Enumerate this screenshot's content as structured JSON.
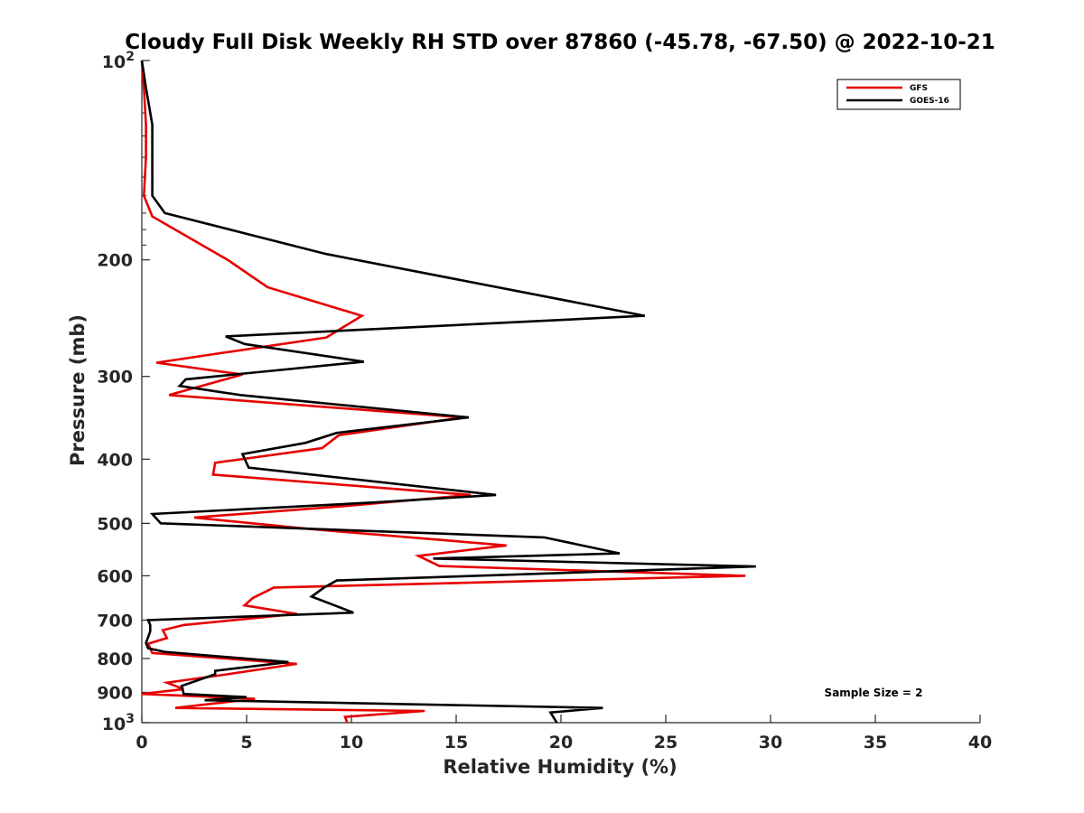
{
  "chart_data": {
    "type": "line",
    "title": "Cloudy Full Disk Weekly RH STD over 87860 (-45.78, -67.50) @ 2022-10-21",
    "xlabel": "Relative Humidity (%)",
    "ylabel": "Pressure (mb)",
    "xlim": [
      0,
      40
    ],
    "ylim": [
      100,
      1000
    ],
    "y_scale": "log",
    "y_reversed": true,
    "x_ticks": [
      "0",
      "5",
      "10",
      "15",
      "20",
      "25",
      "30",
      "35",
      "40"
    ],
    "y_ticks": [
      {
        "value": 200,
        "label": "200"
      },
      {
        "value": 300,
        "label": "300"
      },
      {
        "value": 400,
        "label": "400"
      },
      {
        "value": 500,
        "label": "500"
      },
      {
        "value": 600,
        "label": "600"
      },
      {
        "value": 700,
        "label": "700"
      },
      {
        "value": 800,
        "label": "800"
      },
      {
        "value": 900,
        "label": "900"
      }
    ],
    "y_tick_power_labels": {
      "top": {
        "base": "10",
        "exp": "2"
      },
      "bottom": {
        "base": "10",
        "exp": "3"
      }
    },
    "legend_position": "top-right",
    "note": "Sample Size = 2",
    "series": [
      {
        "name": "GFS",
        "color": "#e60000",
        "x": [
          0.0,
          0.1,
          0.2,
          0.2,
          0.1,
          0.5,
          4.1,
          6.0,
          10.5,
          8.8,
          0.7,
          4.8,
          1.3,
          15.3,
          9.4,
          8.6,
          3.5,
          3.4,
          15.7,
          10.0,
          2.5,
          8.0,
          17.4,
          13.2,
          14.2,
          28.8,
          6.3,
          5.3,
          4.9,
          7.4,
          2.0,
          1.0,
          1.2,
          0.3,
          0.5,
          7.4,
          4.1,
          1.2,
          2.0,
          0.0,
          5.4,
          1.6,
          13.5,
          9.7,
          9.8
        ],
        "y": [
          100,
          110,
          125,
          140,
          160,
          172,
          200,
          220,
          243,
          262,
          286,
          298,
          320,
          346,
          368,
          385,
          405,
          422,
          453,
          470,
          490,
          510,
          540,
          560,
          580,
          600,
          625,
          648,
          665,
          685,
          712,
          725,
          745,
          760,
          785,
          815,
          845,
          870,
          890,
          905,
          920,
          950,
          960,
          980,
          1000
        ]
      },
      {
        "name": "GOES-16",
        "color": "#000000",
        "x": [
          0.0,
          0.2,
          0.5,
          0.5,
          0.5,
          1.1,
          8.8,
          24.0,
          4.0,
          4.9,
          10.6,
          2.1,
          1.8,
          4.7,
          15.6,
          9.3,
          7.8,
          4.8,
          5.1,
          16.9,
          11.1,
          0.5,
          0.9,
          19.2,
          22.8,
          13.9,
          29.3,
          9.3,
          8.7,
          8.1,
          10.1,
          0.3,
          0.4,
          0.4,
          0.2,
          0.3,
          1.1,
          7.0,
          3.5,
          3.5,
          1.9,
          2.0,
          5.0,
          3.0,
          22.0,
          19.5,
          19.8
        ],
        "y": [
          100,
          110,
          125,
          140,
          160,
          170,
          196,
          243,
          261,
          268,
          285,
          303,
          310,
          320,
          346,
          365,
          378,
          393,
          412,
          453,
          465,
          484,
          500,
          525,
          555,
          565,
          581,
          610,
          625,
          645,
          682,
          700,
          712,
          728,
          758,
          772,
          782,
          810,
          835,
          845,
          880,
          905,
          915,
          925,
          950,
          965,
          1000
        ]
      }
    ]
  }
}
